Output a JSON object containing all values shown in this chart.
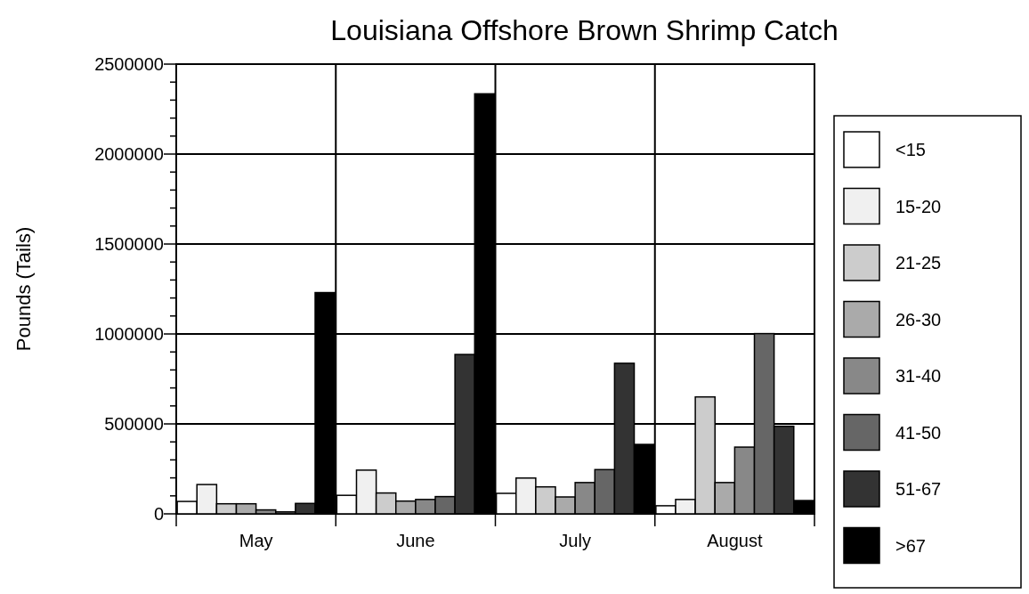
{
  "chart_data": {
    "type": "bar",
    "title": "Louisiana Offshore Brown Shrimp Catch",
    "ylabel": "Pounds (Tails)",
    "categories": [
      "May",
      "June",
      "July",
      "August"
    ],
    "series": [
      {
        "name": "<15",
        "color": "#ffffff",
        "values": [
          69000,
          103000,
          114000,
          45000
        ]
      },
      {
        "name": "15-20",
        "color": "#f0f0f0",
        "values": [
          163000,
          243000,
          199000,
          80000
        ]
      },
      {
        "name": "21-25",
        "color": "#cccccc",
        "values": [
          56000,
          116000,
          150000,
          650000
        ]
      },
      {
        "name": "26-30",
        "color": "#aaaaaa",
        "values": [
          56000,
          71000,
          94000,
          174000
        ]
      },
      {
        "name": "31-40",
        "color": "#888888",
        "values": [
          22000,
          80000,
          174000,
          371000
        ]
      },
      {
        "name": "41-50",
        "color": "#666666",
        "values": [
          11000,
          96000,
          246000,
          1002000
        ]
      },
      {
        "name": "51-67",
        "color": "#333333",
        "values": [
          58000,
          886000,
          837000,
          487000
        ]
      },
      {
        "name": ">67",
        "color": "#000000",
        "values": [
          1230000,
          2335000,
          386000,
          74000
        ]
      }
    ],
    "ylim": [
      0,
      2500000
    ],
    "yticks": [
      0,
      {
        "value": 100000,
        "label": null
      },
      {
        "value": 200000,
        "label": null
      },
      {
        "value": 300000,
        "label": null
      },
      {
        "value": 400000,
        "label": null
      },
      500000,
      {
        "value": 600000,
        "label": null
      },
      {
        "value": 700000,
        "label": null
      },
      {
        "value": 800000,
        "label": null
      },
      {
        "value": 900000,
        "label": null
      },
      1000000,
      {
        "value": 1100000,
        "label": null
      },
      {
        "value": 1200000,
        "label": null
      },
      {
        "value": 1300000,
        "label": null
      },
      {
        "value": 1400000,
        "label": null
      },
      1500000,
      {
        "value": 1600000,
        "label": null
      },
      {
        "value": 1700000,
        "label": null
      },
      {
        "value": 1800000,
        "label": null
      },
      {
        "value": 1900000,
        "label": null
      },
      2000000,
      {
        "value": 2100000,
        "label": null
      },
      {
        "value": 2200000,
        "label": null
      },
      {
        "value": 2300000,
        "label": null
      },
      {
        "value": 2400000,
        "label": null
      },
      2500000
    ],
    "grid": true,
    "legend": "right"
  }
}
